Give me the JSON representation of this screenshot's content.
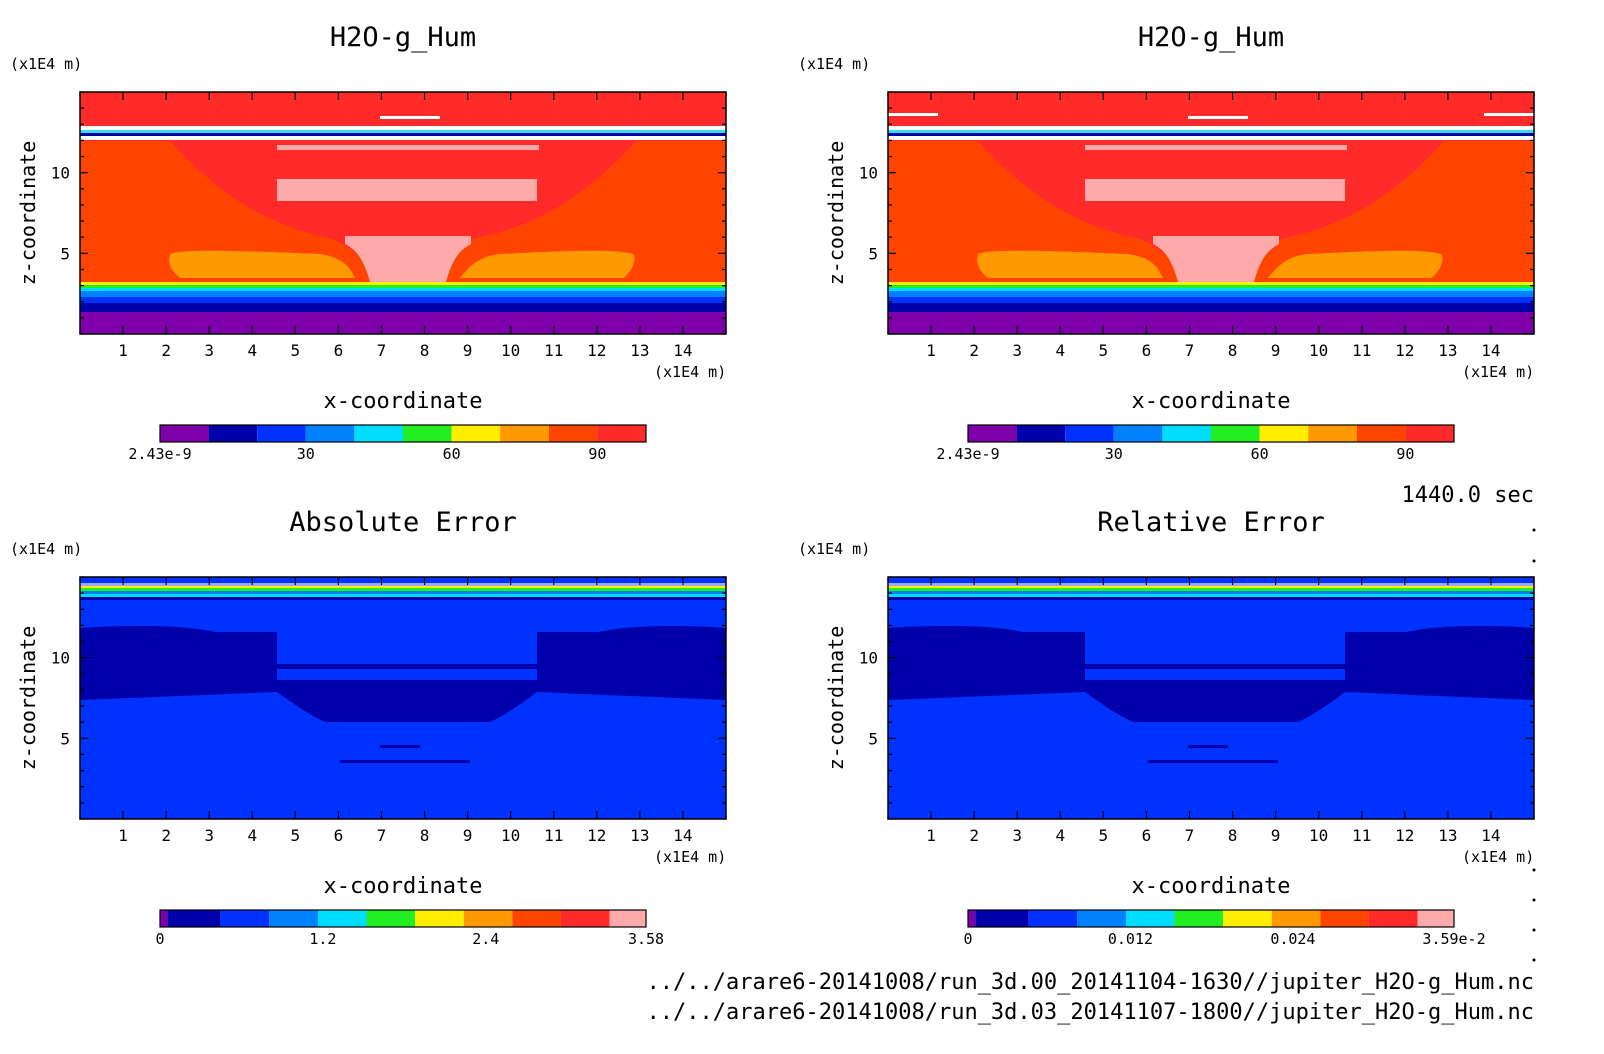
{
  "chart_data": [
    {
      "type": "heatmap",
      "title": "H2O-g_Hum",
      "xlabel": "x-coordinate",
      "ylabel": "z-coordinate",
      "x_unit": "(x1E4 m)",
      "y_unit": "(x1E4 m)",
      "xlim": [
        0,
        15
      ],
      "ylim": [
        0,
        15
      ],
      "x_ticks": [
        "1",
        "2",
        "3",
        "4",
        "5",
        "6",
        "7",
        "8",
        "9",
        "10",
        "11",
        "12",
        "13",
        "14"
      ],
      "y_ticks": [
        "5",
        "10"
      ],
      "colorbar_labels": [
        "2.43e-9",
        "30",
        "60",
        "90"
      ],
      "colorbar_range": [
        0,
        100
      ],
      "colors": [
        "#7f00aa",
        "#0000aa",
        "#0032ff",
        "#0081ff",
        "#00ddff",
        "#22ee22",
        "#ffee00",
        "#ff9900",
        "#ff4400",
        "#ff2a2a",
        "#ffaaaa"
      ]
    },
    {
      "type": "heatmap",
      "title": "H2O-g_Hum",
      "xlabel": "x-coordinate",
      "ylabel": "z-coordinate",
      "x_unit": "(x1E4 m)",
      "y_unit": "(x1E4 m)",
      "xlim": [
        0,
        15
      ],
      "ylim": [
        0,
        15
      ],
      "x_ticks": [
        "1",
        "2",
        "3",
        "4",
        "5",
        "6",
        "7",
        "8",
        "9",
        "10",
        "11",
        "12",
        "13",
        "14"
      ],
      "y_ticks": [
        "5",
        "10"
      ],
      "colorbar_labels": [
        "2.43e-9",
        "30",
        "60",
        "90"
      ],
      "colorbar_range": [
        0,
        100
      ]
    },
    {
      "type": "heatmap",
      "title": "Absolute Error",
      "xlabel": "x-coordinate",
      "ylabel": "z-coordinate",
      "x_unit": "(x1E4 m)",
      "y_unit": "(x1E4 m)",
      "xlim": [
        0,
        15
      ],
      "ylim": [
        0,
        15
      ],
      "x_ticks": [
        "1",
        "2",
        "3",
        "4",
        "5",
        "6",
        "7",
        "8",
        "9",
        "10",
        "11",
        "12",
        "13",
        "14"
      ],
      "y_ticks": [
        "5",
        "10"
      ],
      "colorbar_labels": [
        "0",
        "1.2",
        "2.4",
        "3.58"
      ],
      "colorbar_range": [
        0,
        3.58
      ]
    },
    {
      "type": "heatmap",
      "title": "Relative Error",
      "xlabel": "x-coordinate",
      "ylabel": "z-coordinate",
      "x_unit": "(x1E4 m)",
      "y_unit": "(x1E4 m)",
      "xlim": [
        0,
        15
      ],
      "ylim": [
        0,
        15
      ],
      "x_ticks": [
        "1",
        "2",
        "3",
        "4",
        "5",
        "6",
        "7",
        "8",
        "9",
        "10",
        "11",
        "12",
        "13",
        "14"
      ],
      "y_ticks": [
        "5",
        "10"
      ],
      "colorbar_labels": [
        "0",
        "0.012",
        "0.024",
        "3.59e-2"
      ],
      "colorbar_range": [
        0,
        0.0359
      ]
    }
  ],
  "time_label": "1440.0 sec",
  "file_paths": [
    "../../arare6-20141008/run_3d.00_20141104-1630//jupiter_H2O-g_Hum.nc",
    "../../arare6-20141008/run_3d.03_20141107-1800//jupiter_H2O-g_Hum.nc"
  ]
}
